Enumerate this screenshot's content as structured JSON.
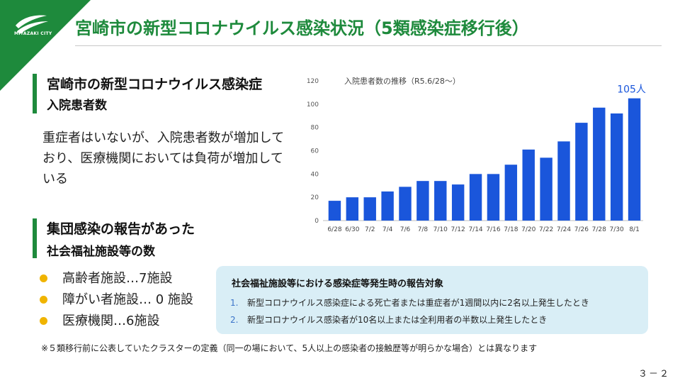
{
  "header": {
    "logo_text": "MIYAZAKI CITY",
    "title": "宮崎市の新型コロナウイルス感染状況（5類感染症移行後）"
  },
  "section_inpatient": {
    "title_line1": "宮崎市の新型コロナウイルス感染症",
    "title_line2": "入院患者数",
    "body": "重症者はいないが、入院患者数が増加しており、医療機関においては負荷が増加している"
  },
  "section_cluster": {
    "title_line1": "集団感染の報告があった",
    "title_line2": "社会福祉施設等の数",
    "items": [
      "高齢者施設…7施設",
      "障がい者施設… 0 施設",
      "医療機関…6施設"
    ]
  },
  "criteria": {
    "title": "社会福祉施設等における感染症等発生時の報告対象",
    "items": [
      {
        "num": "1.",
        "text": "新型コロナウイルス感染症による死亡者または重症者が1週間以内に2名以上発生したとき"
      },
      {
        "num": "2.",
        "text": "新型コロナウイルス感染者が10名以上または全利用者の半数以上発生したとき"
      }
    ]
  },
  "footnote": "※５類移行前に公表していたクラスターの定義（同一の場において、5人以上の感染者の接触歴等が明らかな場合）とは異なります",
  "page_number": "３－２",
  "colors": {
    "brand_green": "#1e8a3c",
    "bar_blue": "#1a56db",
    "bullet_yellow": "#f0b400",
    "panel_blue": "#d9eef6"
  },
  "chart_data": {
    "type": "bar",
    "title": "入院患者数の推移（R5.6/28～）",
    "categories": [
      "6/28",
      "6/30",
      "7/2",
      "7/4",
      "7/6",
      "7/8",
      "7/10",
      "7/12",
      "7/14",
      "7/16",
      "7/18",
      "7/20",
      "7/22",
      "7/24",
      "7/26",
      "7/28",
      "7/30",
      "8/1"
    ],
    "values": [
      17,
      20,
      20,
      25,
      29,
      34,
      34,
      31,
      40,
      40,
      48,
      61,
      54,
      68,
      84,
      97,
      92,
      105
    ],
    "ylim": [
      0,
      120
    ],
    "yticks": [
      0,
      20,
      40,
      60,
      80,
      100,
      120
    ],
    "grid": false,
    "annotation": {
      "category": "8/1",
      "text": "105人"
    }
  }
}
